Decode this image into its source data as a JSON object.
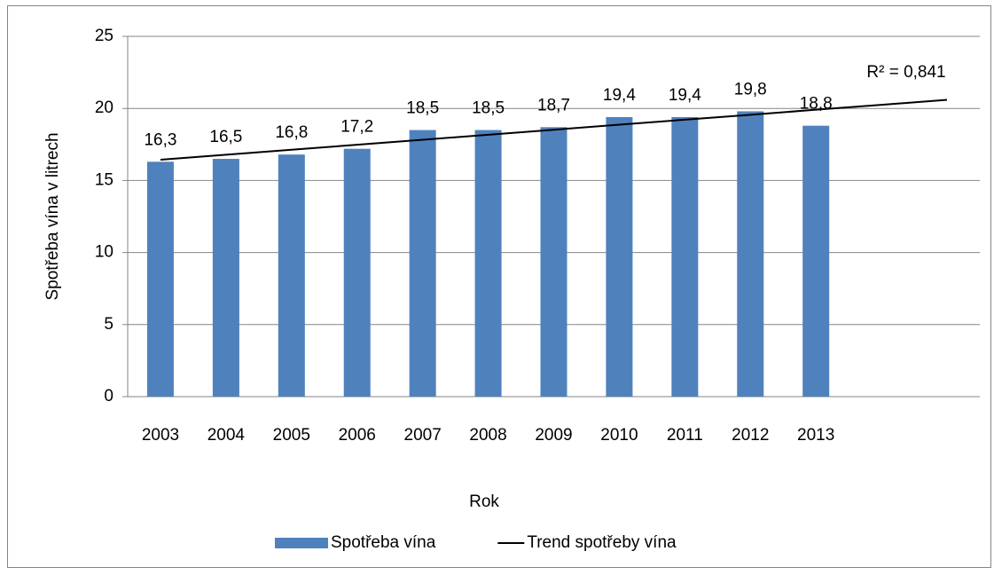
{
  "chart_data": {
    "type": "bar",
    "y_label": "Spotřeba vína v litrech",
    "x_label": "Rok",
    "categories": [
      "2003",
      "2004",
      "2005",
      "2006",
      "2007",
      "2008",
      "2009",
      "2010",
      "2011",
      "2012",
      "2013",
      null,
      null
    ],
    "series": [
      {
        "name": "Spotřeba vína",
        "type": "bar",
        "color": "#4f81bd",
        "values": [
          16.3,
          16.5,
          16.8,
          17.2,
          18.5,
          18.5,
          18.7,
          19.4,
          19.4,
          19.8,
          18.8,
          null,
          null
        ],
        "value_labels": [
          "16,3",
          "16,5",
          "16,8",
          "17,2",
          "18,5",
          "18,5",
          "18,7",
          "19,4",
          "19,4",
          "19,8",
          "18,8",
          null,
          null
        ]
      },
      {
        "name": "Trend spotřeby vína",
        "type": "line",
        "color": "#000000",
        "values": [
          16.44,
          16.79,
          17.13,
          17.48,
          17.83,
          18.17,
          18.52,
          18.87,
          19.22,
          19.56,
          19.91,
          20.25,
          20.6
        ]
      }
    ],
    "annotation": "R² = 0,841",
    "ylim": [
      0,
      25
    ],
    "yticks": [
      0,
      5,
      10,
      15,
      20,
      25
    ],
    "grid": true,
    "legend": "bottom"
  }
}
